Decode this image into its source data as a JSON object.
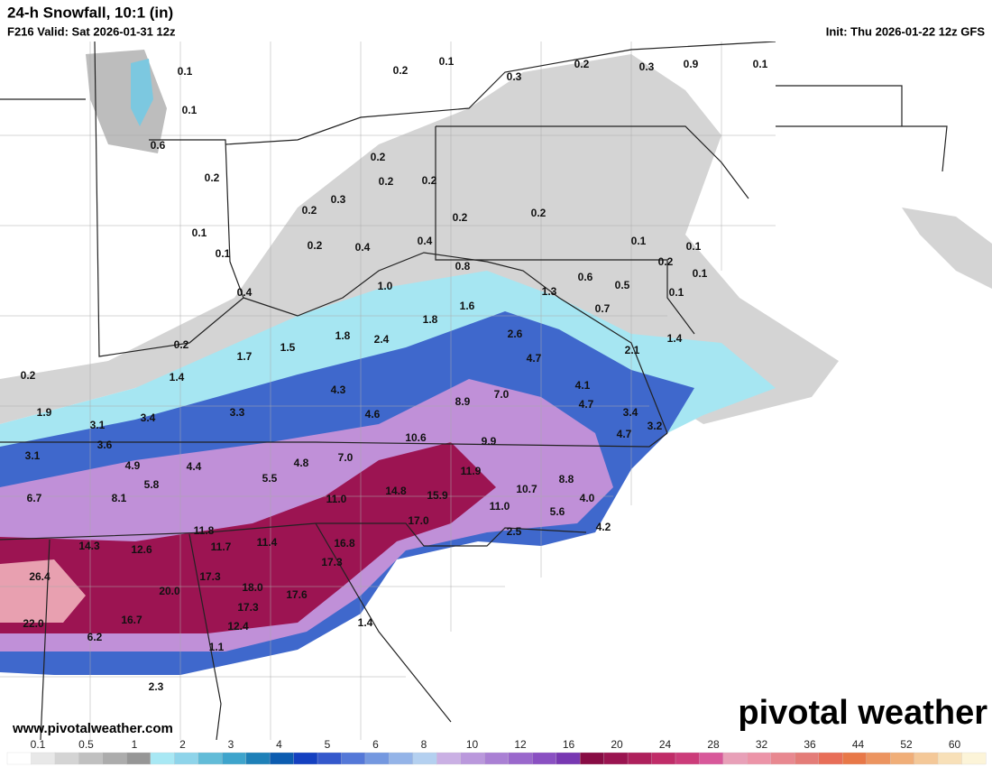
{
  "header": {
    "title": "24-h Snowfall, 10:1 (in)",
    "valid": "F216 Valid: Sat 2026-01-31 12z",
    "init": "Init: Thu 2026-01-22 12z GFS"
  },
  "map": {
    "labels": [
      "0.1",
      "0.1",
      "0.6",
      "0.2",
      "0.1",
      "0.1",
      "0.4",
      "0.2",
      "0.2",
      "1.4",
      "1.7",
      "1.5",
      "1.8",
      "2.4",
      "1.8",
      "1.6",
      "1.0",
      "0.2",
      "0.1",
      "0.3",
      "0.2",
      "0.3",
      "0.9",
      "0.1",
      "0.2",
      "0.2",
      "0.2",
      "0.3",
      "0.2",
      "0.2",
      "0.2",
      "0.2",
      "0.4",
      "0.4",
      "0.8",
      "0.1",
      "0.1",
      "0.2",
      "0.1",
      "0.6",
      "0.5",
      "1.3",
      "0.1",
      "0.7",
      "2.6",
      "2.1",
      "1.4",
      "4.7",
      "4.1",
      "4.7",
      "3.4",
      "3.2",
      "4.7",
      "1.9",
      "3.1",
      "3.4",
      "3.3",
      "4.3",
      "4.6",
      "8.9",
      "7.0",
      "10.6",
      "9.9",
      "3.1",
      "3.6",
      "4.9",
      "4.4",
      "5.5",
      "4.8",
      "7.0",
      "11.9",
      "8.8",
      "10.7",
      "4.0",
      "6.7",
      "8.1",
      "5.8",
      "11.0",
      "14.8",
      "15.9",
      "11.0",
      "5.6",
      "4.2",
      "17.0",
      "2.5",
      "11.8",
      "14.3",
      "12.6",
      "11.7",
      "11.4",
      "16.8",
      "17.3",
      "26.4",
      "17.3",
      "18.0",
      "20.0",
      "17.3",
      "17.6",
      "16.7",
      "12.4",
      "22.0",
      "6.2",
      "1.4",
      "1.1",
      "2.3"
    ]
  },
  "legend": {
    "labels": [
      "0.1",
      "0.5",
      "1",
      "2",
      "3",
      "4",
      "5",
      "6",
      "8",
      "10",
      "12",
      "16",
      "20",
      "24",
      "28",
      "32",
      "36",
      "44",
      "52",
      "60"
    ],
    "colors": [
      "#ffffff",
      "#e8e8e8",
      "#d4d4d4",
      "#c0c0c0",
      "#acacac",
      "#969696",
      "#a8e8f4",
      "#8ed4ea",
      "#62bcd8",
      "#3ea4cc",
      "#1e80b8",
      "#0c5cb0",
      "#1440c0",
      "#3458cc",
      "#5478d8",
      "#7498e0",
      "#94b4e8",
      "#b4d0f0",
      "#cab0e4",
      "#ba98dc",
      "#aa80d4",
      "#9a68cc",
      "#8a50c2",
      "#7838b2",
      "#880c44",
      "#9a1450",
      "#ae205c",
      "#c02c68",
      "#cc3c7a",
      "#d8589a",
      "#e8a0b8",
      "#ec94a8",
      "#e88890",
      "#e47c78",
      "#e86e58",
      "#e87848",
      "#ec9460",
      "#f0ae78",
      "#f4c898",
      "#f8e0b8",
      "#fcf4d8"
    ]
  },
  "footer": {
    "url": "www.pivotalweather.com",
    "brand": "pivotal weather"
  }
}
